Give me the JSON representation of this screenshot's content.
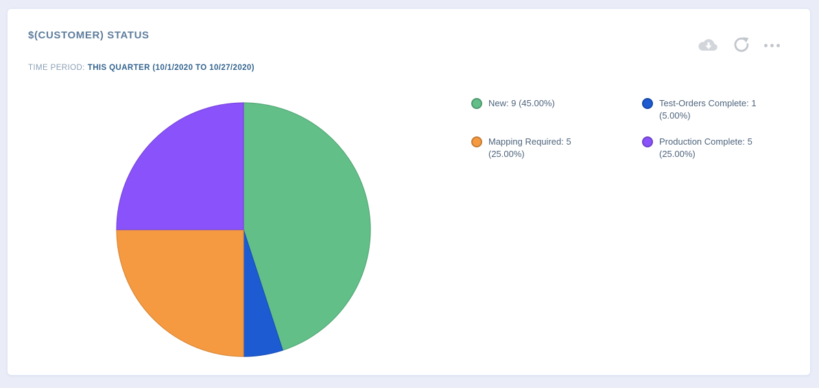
{
  "page": {
    "background": "#eaedf8",
    "card_background": "#ffffff"
  },
  "card": {
    "title": "$(CUSTOMER) STATUS",
    "time_period": {
      "label": "TIME PERIOD:",
      "value": "THIS QUARTER (10/1/2020 TO 10/27/2020)"
    },
    "toolbar": {
      "icons": [
        "cloud-download",
        "refresh",
        "more-options"
      ],
      "icon_color": "#c6cad2"
    }
  },
  "chart_data": {
    "type": "pie",
    "title": "$(CUSTOMER) STATUS",
    "total": 20,
    "start_angle_deg": 0,
    "direction": "clockwise",
    "legend_position": "right",
    "slices": [
      {
        "label": "New",
        "value": 9,
        "percent": 45.0,
        "color": "#62bf88",
        "legend_lines": [
          "New: 9 (45.00%)"
        ]
      },
      {
        "label": "Test-Orders Complete",
        "value": 1,
        "percent": 5.0,
        "color": "#1d5bd2",
        "legend_lines": [
          "Test-Orders Complete: 1",
          "(5.00%)"
        ]
      },
      {
        "label": "Mapping Required",
        "value": 5,
        "percent": 25.0,
        "color": "#f59a41",
        "legend_lines": [
          "Mapping Required: 5",
          "(25.00%)"
        ]
      },
      {
        "label": "Production Complete",
        "value": 5,
        "percent": 25.0,
        "color": "#8a52fa",
        "legend_lines": [
          "Production Complete: 5",
          "(25.00%)"
        ]
      }
    ]
  }
}
